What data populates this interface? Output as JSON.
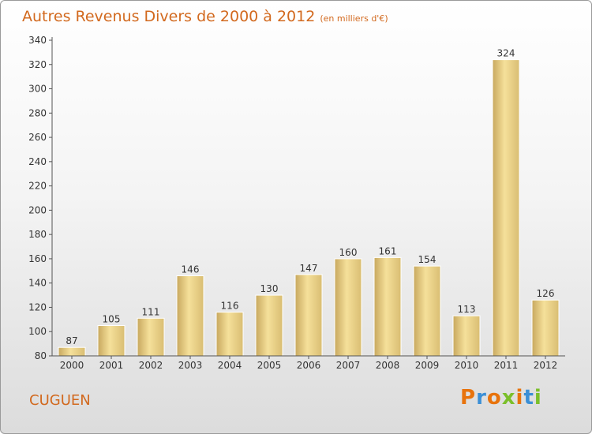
{
  "chart_data": {
    "type": "bar",
    "title": "Autres Revenus Divers de 2000 à 2012",
    "unit_label": "(en milliers d'€)",
    "categories": [
      "2000",
      "2001",
      "2002",
      "2003",
      "2004",
      "2005",
      "2006",
      "2007",
      "2008",
      "2009",
      "2010",
      "2011",
      "2012"
    ],
    "values": [
      87,
      105,
      111,
      146,
      116,
      130,
      147,
      160,
      161,
      154,
      113,
      324,
      126
    ],
    "ylim": [
      80,
      340
    ],
    "yticks": [
      80,
      100,
      120,
      140,
      160,
      180,
      200,
      220,
      240,
      260,
      280,
      300,
      320,
      340
    ],
    "grid": false,
    "bar_color_top": "#f5e09a",
    "bar_color_bottom": "#c8a85e"
  },
  "commune": "CUGUEN",
  "logo": {
    "letters": [
      "P",
      "r",
      "o",
      "x",
      "i",
      "t",
      "i"
    ],
    "colors": [
      "#e8730c",
      "#3b8fd6",
      "#e8730c",
      "#7bbf2a",
      "#e8730c",
      "#3b8fd6",
      "#7bbf2a"
    ]
  },
  "title_color": "#d2691e"
}
